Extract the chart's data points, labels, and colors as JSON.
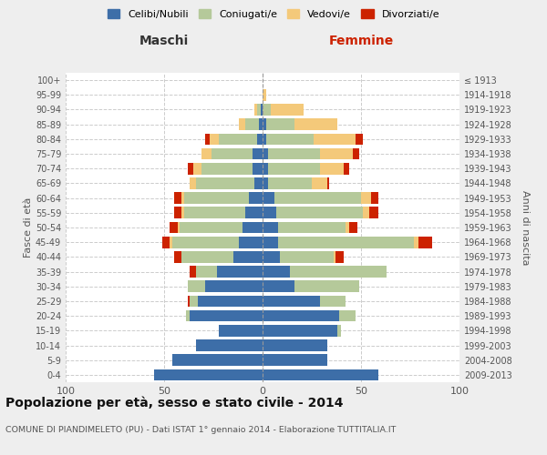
{
  "age_groups": [
    "0-4",
    "5-9",
    "10-14",
    "15-19",
    "20-24",
    "25-29",
    "30-34",
    "35-39",
    "40-44",
    "45-49",
    "50-54",
    "55-59",
    "60-64",
    "65-69",
    "70-74",
    "75-79",
    "80-84",
    "85-89",
    "90-94",
    "95-99",
    "100+"
  ],
  "birth_years": [
    "2009-2013",
    "2004-2008",
    "1999-2003",
    "1994-1998",
    "1989-1993",
    "1984-1988",
    "1979-1983",
    "1974-1978",
    "1969-1973",
    "1964-1968",
    "1959-1963",
    "1954-1958",
    "1949-1953",
    "1944-1948",
    "1939-1943",
    "1934-1938",
    "1929-1933",
    "1924-1928",
    "1919-1923",
    "1914-1918",
    "≤ 1913"
  ],
  "colors": {
    "celibe": "#3d6ea8",
    "coniugato": "#b5c99a",
    "vedovo": "#f4c97a",
    "divorziato": "#cc2200"
  },
  "maschi": {
    "celibe": [
      55,
      46,
      34,
      22,
      37,
      33,
      29,
      23,
      15,
      12,
      10,
      9,
      7,
      4,
      5,
      5,
      3,
      2,
      1,
      0,
      0
    ],
    "coniugato": [
      0,
      0,
      0,
      0,
      2,
      4,
      9,
      11,
      26,
      34,
      32,
      31,
      33,
      30,
      26,
      21,
      19,
      7,
      2,
      0,
      0
    ],
    "vedovo": [
      0,
      0,
      0,
      0,
      0,
      0,
      0,
      0,
      0,
      1,
      1,
      1,
      1,
      3,
      4,
      5,
      5,
      3,
      1,
      0,
      0
    ],
    "divorziato": [
      0,
      0,
      0,
      0,
      0,
      1,
      0,
      3,
      4,
      4,
      4,
      4,
      4,
      0,
      3,
      0,
      2,
      0,
      0,
      0,
      0
    ]
  },
  "femmine": {
    "nubile": [
      59,
      33,
      33,
      38,
      39,
      29,
      16,
      14,
      9,
      8,
      8,
      7,
      6,
      3,
      3,
      3,
      2,
      2,
      0,
      0,
      0
    ],
    "coniugata": [
      0,
      0,
      0,
      2,
      8,
      13,
      33,
      49,
      27,
      69,
      34,
      44,
      44,
      22,
      26,
      26,
      24,
      14,
      4,
      0,
      0
    ],
    "vedova": [
      0,
      0,
      0,
      0,
      0,
      0,
      0,
      0,
      1,
      2,
      2,
      3,
      5,
      8,
      12,
      17,
      21,
      22,
      17,
      2,
      0
    ],
    "divorziata": [
      0,
      0,
      0,
      0,
      0,
      0,
      0,
      0,
      4,
      7,
      4,
      5,
      4,
      1,
      3,
      3,
      4,
      0,
      0,
      0,
      0
    ]
  },
  "xlim": 100,
  "title": "Popolazione per età, sesso e stato civile - 2014",
  "subtitle": "COMUNE DI PIANDIMELETO (PU) - Dati ISTAT 1° gennaio 2014 - Elaborazione TUTTITALIA.IT",
  "ylabel": "Fasce di età",
  "ylabel_right": "Anni di nascita",
  "xlabel_left": "Maschi",
  "xlabel_right": "Femmine",
  "legend_labels": [
    "Celibi/Nubili",
    "Coniugati/e",
    "Vedovi/e",
    "Divorziati/e"
  ],
  "bg_color": "#eeeeee",
  "plot_bg": "#ffffff"
}
